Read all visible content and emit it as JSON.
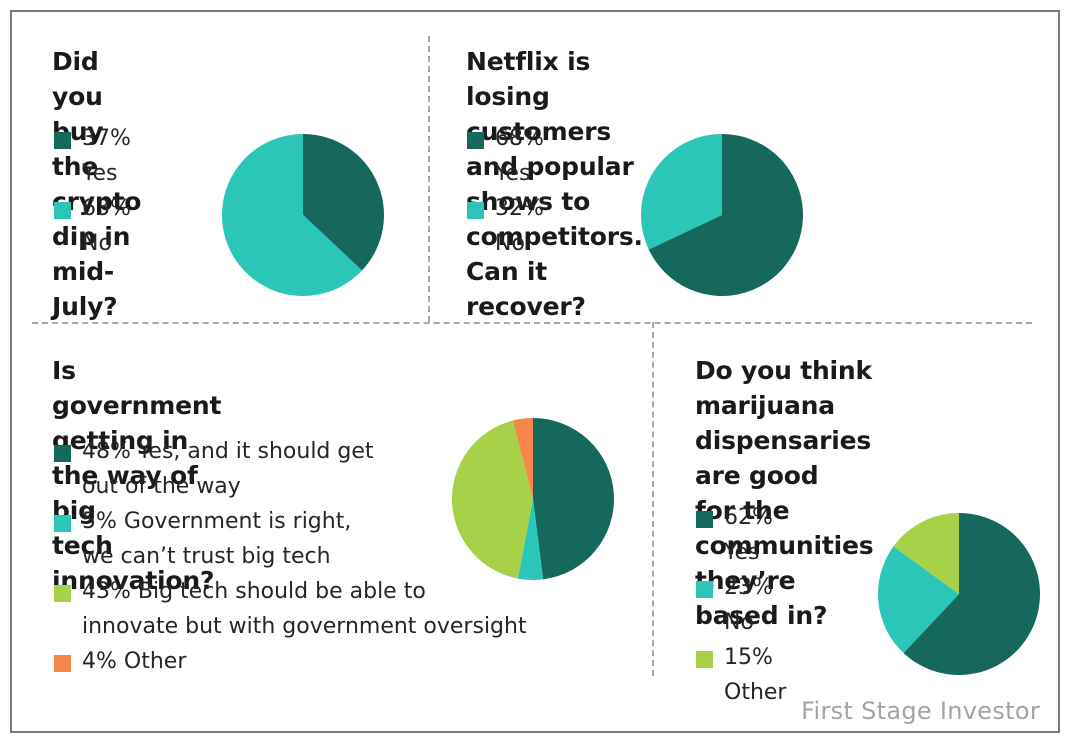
{
  "colors": {
    "dark_teal": "#16675c",
    "teal": "#2cc6b8",
    "lime": "#a8d14a",
    "orange": "#f6874a",
    "border": "#7a7a7a",
    "divider": "#a9a9a9",
    "watermark": "#a4a4a4"
  },
  "watermark": "First Stage Investor",
  "chart_data": [
    {
      "type": "pie",
      "title": "Did you buy the crypto dip in mid-July?",
      "labels": [
        "Yes",
        "No"
      ],
      "values": [
        37,
        63
      ],
      "legend": [
        "37% Yes",
        "63% No"
      ],
      "colors": [
        "#16675c",
        "#2cc6b8"
      ]
    },
    {
      "type": "pie",
      "title": "Netflix is losing customers and popular shows to competitors. Can it recover?",
      "labels": [
        "Yes",
        "No"
      ],
      "values": [
        68,
        32
      ],
      "legend": [
        "68% Yes",
        "32% No"
      ],
      "colors": [
        "#16675c",
        "#2cc6b8"
      ]
    },
    {
      "type": "pie",
      "title": "Is government getting in the way of big tech innovation?",
      "labels": [
        "Yes, and it should get out of the way",
        "Government is right, we can’t trust big tech",
        "Big tech should be able to innovate but with government oversight",
        "Other"
      ],
      "values": [
        48,
        5,
        43,
        4
      ],
      "legend": [
        [
          "48% Yes, and it should get",
          "out of the way"
        ],
        [
          "5% Government is right,",
          "we can’t trust big tech"
        ],
        [
          "43% Big tech should be able to",
          "innovate but with government oversight"
        ],
        [
          "4% Other"
        ]
      ],
      "colors": [
        "#16675c",
        "#2cc6b8",
        "#a8d14a",
        "#f6874a"
      ]
    },
    {
      "type": "pie",
      "title": "Do you think marijuana dispensaries are good for the communities they’re based in?",
      "labels": [
        "Yes",
        "No",
        "Other"
      ],
      "values": [
        62,
        23,
        15
      ],
      "legend": [
        "62% Yes",
        "23% No",
        "15% Other"
      ],
      "colors": [
        "#16675c",
        "#2cc6b8",
        "#a8d14a"
      ]
    }
  ],
  "titles": [
    [
      "Did you buy the crypto",
      "dip in mid-July?"
    ],
    [
      "Netflix is losing customers and popular",
      "shows to competitors. Can it recover?"
    ],
    [
      "Is government getting in the way of big",
      "tech innovation?"
    ],
    [
      "Do you think marijuana",
      "dispensaries are good",
      "for the communities",
      "they’re based in?"
    ]
  ]
}
